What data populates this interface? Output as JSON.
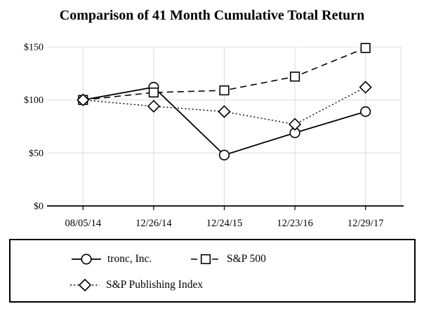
{
  "title": "Comparison of 41 Month Cumulative Total Return",
  "chart_data": {
    "type": "line",
    "title": "Comparison of 41 Month Cumulative Total Return",
    "categories": [
      "08/05/14",
      "12/26/14",
      "12/24/15",
      "12/23/16",
      "12/29/17"
    ],
    "series": [
      {
        "name": "tronc, Inc.",
        "marker": "circle",
        "line_style": "solid",
        "values": [
          100,
          112,
          48,
          69,
          89
        ]
      },
      {
        "name": "S&P 500",
        "marker": "square",
        "line_style": "dashed",
        "values": [
          100,
          107,
          109,
          122,
          149
        ]
      },
      {
        "name": "S&P Publishing Index",
        "marker": "diamond",
        "line_style": "dotted",
        "values": [
          100,
          94,
          89,
          77,
          112
        ]
      }
    ],
    "ylim": [
      0,
      150
    ],
    "yticks": [
      0,
      50,
      100,
      150
    ],
    "ytick_labels": [
      "$0",
      "$50",
      "$100",
      "$150"
    ],
    "xlabel": "",
    "ylabel": "",
    "grid": true,
    "legend_position": "bottom-box",
    "colors": {
      "series": "#000000",
      "grid": "#dcdcdc",
      "axis": "#000000",
      "background": "#ffffff",
      "marker_fill": "#ffffff"
    }
  }
}
